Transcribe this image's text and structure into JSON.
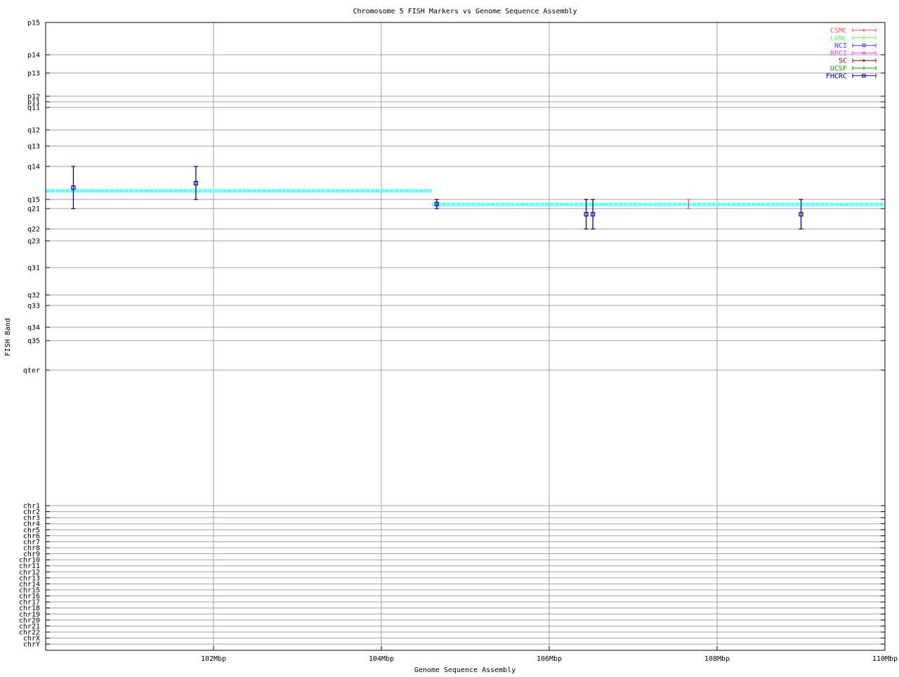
{
  "chart_data": {
    "type": "scatter",
    "title": "Chromosome 5 FISH Markers vs Genome Sequence Assembly",
    "xlabel": "Genome Sequence Assembly",
    "ylabel": "FISH Band",
    "xlim": [
      100,
      110
    ],
    "x_unit": "Mbp",
    "xticks": [
      {
        "value": 102,
        "label": "102Mbp"
      },
      {
        "value": 104,
        "label": "104Mbp"
      },
      {
        "value": 106,
        "label": "106Mbp"
      },
      {
        "value": 108,
        "label": "108Mbp"
      },
      {
        "value": 110,
        "label": "110Mbp"
      }
    ],
    "yticks": [
      "p15",
      "p14",
      "p13",
      "p12",
      "p11",
      "q11",
      "q12",
      "q13",
      "q14",
      "q15",
      "q21",
      "q22",
      "q23",
      "q31",
      "q32",
      "q33",
      "q34",
      "q35",
      "qter",
      "chr1",
      "chr2",
      "chr3",
      "chr4",
      "chr5",
      "chr6",
      "chr7",
      "chr8",
      "chr9",
      "chr10",
      "chr11",
      "chr12",
      "chr13",
      "chr14",
      "chr15",
      "chr16",
      "chr17",
      "chr18",
      "chr19",
      "chr20",
      "chr21",
      "chr22",
      "chrX",
      "chrY"
    ],
    "grid": true,
    "legend_position": "top-right",
    "legend": [
      {
        "name": "CSMC",
        "color": "#ff5050",
        "marker": "diamond"
      },
      {
        "name": "LANL",
        "color": "#50ff50",
        "marker": "plus"
      },
      {
        "name": "NCI",
        "color": "#4040ff",
        "marker": "square"
      },
      {
        "name": "RPCI",
        "color": "#ff40ff",
        "marker": "cross"
      },
      {
        "name": "SC",
        "color": "#a00000",
        "marker": "diamond"
      },
      {
        "name": "UCSF",
        "color": "#00a000",
        "marker": "plus"
      },
      {
        "name": "FHCRC",
        "color": "#0000a0",
        "marker": "square"
      }
    ],
    "points": [
      {
        "series": "FHCRC",
        "x": 100.33,
        "band_low": "q14",
        "band_high": "q21",
        "center": {
          "band": "q14",
          "offset": 0.64
        }
      },
      {
        "series": "FHCRC",
        "x": 101.79,
        "band_low": "q14",
        "band_high": "q15",
        "center": {
          "band": "q14",
          "offset": 0.51
        }
      },
      {
        "series": "FHCRC",
        "x": 104.66,
        "band_low": "q15",
        "band_high": "q21",
        "center": {
          "band": "q15",
          "offset": 0.5
        }
      },
      {
        "series": "FHCRC",
        "x": 106.44,
        "band_low": "q15",
        "band_high": "q22",
        "center": {
          "band": "q21",
          "offset": 0.28
        }
      },
      {
        "series": "FHCRC",
        "x": 106.52,
        "band_low": "q15",
        "band_high": "q22",
        "center": {
          "band": "q21",
          "offset": 0.28
        }
      },
      {
        "series": "CSMC",
        "x": 107.66,
        "band_low": "q15",
        "band_high": "q21",
        "center": null
      },
      {
        "series": "FHCRC",
        "x": 109.0,
        "band_low": "q15",
        "band_high": "q22",
        "center": {
          "band": "q21",
          "offset": 0.28
        }
      }
    ],
    "assembly_line": {
      "color": "#60ffff",
      "segments": [
        {
          "x": [
            100,
            104.6
          ],
          "band": "q14",
          "offset": 0.74
        },
        {
          "x": [
            104.6,
            110
          ],
          "band": "q15",
          "offset": 0.55
        }
      ]
    }
  }
}
